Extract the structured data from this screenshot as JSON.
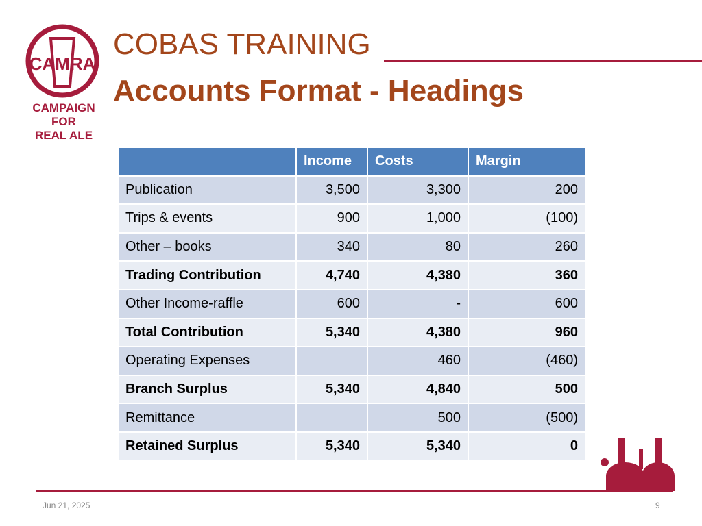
{
  "header": {
    "title": "COBAS TRAINING",
    "subtitle": "Accounts Format - Headings"
  },
  "logo": {
    "mark": "CAMRA",
    "lines": [
      "CAMPAIGN",
      "FOR",
      "REAL ALE"
    ]
  },
  "table": {
    "columns": [
      "Income",
      "Costs",
      "Margin"
    ],
    "rows": [
      {
        "label": "Publication",
        "cells": [
          "3,500",
          "3,300",
          "200"
        ],
        "bold": false
      },
      {
        "label": "Trips & events",
        "cells": [
          "900",
          "1,000",
          "(100)"
        ],
        "bold": false
      },
      {
        "label": "Other – books",
        "cells": [
          "340",
          "80",
          "260"
        ],
        "bold": false
      },
      {
        "label": "Trading Contribution",
        "cells": [
          "4,740",
          "4,380",
          "360"
        ],
        "bold": true
      },
      {
        "label": "Other Income-raffle",
        "cells": [
          "600",
          "-",
          "600"
        ],
        "bold": false
      },
      {
        "label": "Total Contribution",
        "cells": [
          "5,340",
          "4,380",
          "960"
        ],
        "bold": true
      },
      {
        "label": "Operating Expenses",
        "cells": [
          null,
          "460",
          "(460)"
        ],
        "bold": false
      },
      {
        "label": "Branch Surplus",
        "cells": [
          "5,340",
          "4,840",
          "500"
        ],
        "bold": true
      },
      {
        "label": "Remittance",
        "cells": [
          null,
          "500",
          "(500)"
        ],
        "bold": false
      },
      {
        "label": "Retained Surplus",
        "cells": [
          "5,340",
          "5,340",
          "0"
        ],
        "bold": true
      }
    ]
  },
  "footer": {
    "date": "Jun 21, 2025",
    "page": "9"
  }
}
